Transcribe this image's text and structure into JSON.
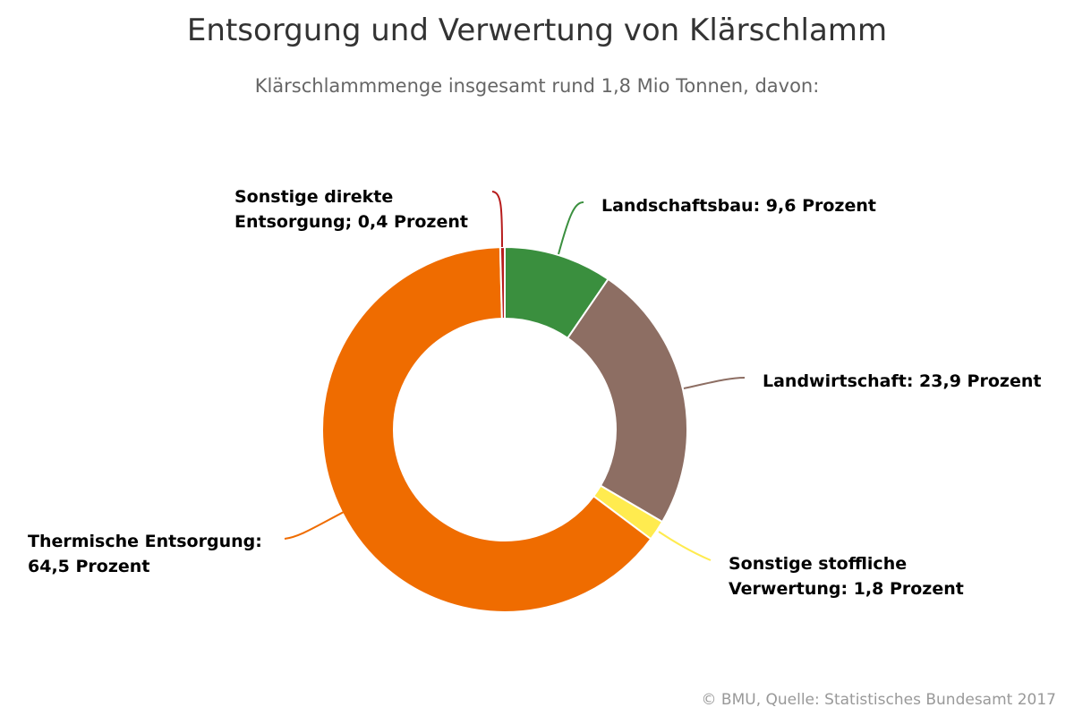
{
  "chart_data": {
    "type": "pie",
    "donut": true,
    "title": "Entsorgung und Verwertung von Klärschlamm",
    "subtitle": "Klärschlammmenge insgesamt rund 1,8 Mio Tonnen, davon:",
    "unit": "Prozent",
    "slices": [
      {
        "name": "Landschaftsbau",
        "value": 9.6,
        "label": "Landschaftsbau: 9,6 Prozent",
        "color": "#3a8f3e"
      },
      {
        "name": "Landwirtschaft",
        "value": 23.9,
        "label": "Landwirtschaft: 23,9 Prozent",
        "color": "#8d6e63"
      },
      {
        "name": "Sonstige stoffliche Verwertung",
        "value": 1.8,
        "label": "Sonstige stoffliche Verwertung: 1,8 Prozent",
        "color": "#ffeb4f"
      },
      {
        "name": "Thermische Entsorgung",
        "value": 64.5,
        "label": "Thermische Entsorgung: 64,5 Prozent",
        "color": "#ef6c00"
      },
      {
        "name": "Sonstige direkte Entsorgung",
        "value": 0.4,
        "label": "Sonstige direkte Entsorgung; 0,4 Prozent",
        "color": "#b71c1c"
      }
    ]
  },
  "credit": "© BMU, Quelle: Statistisches Bundesamt 2017"
}
